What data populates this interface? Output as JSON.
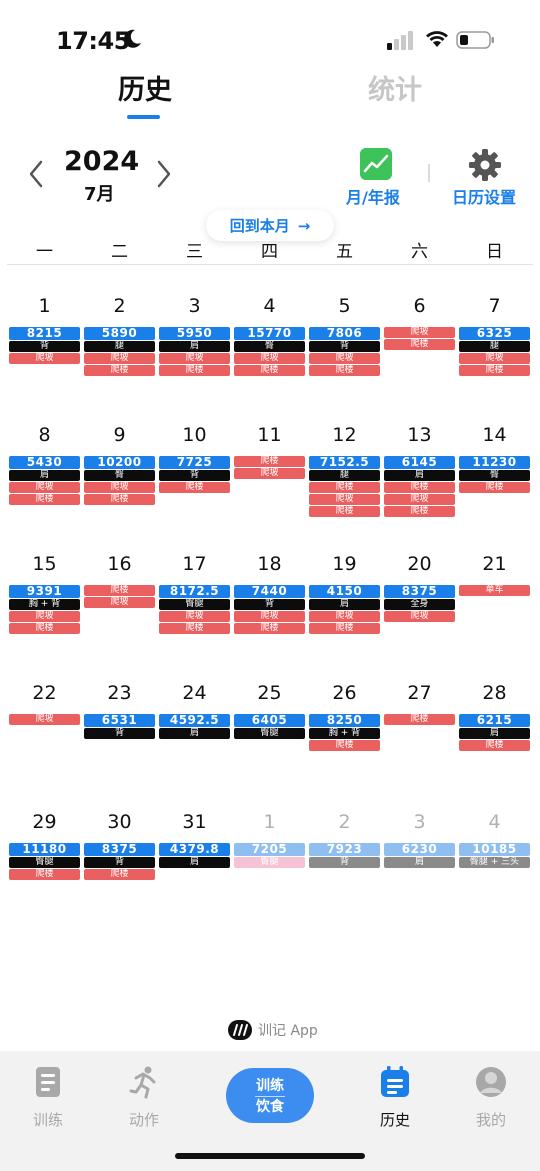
{
  "status_bar": {
    "time": "17:45"
  },
  "tabs": {
    "history": "历史",
    "stats": "统计"
  },
  "header": {
    "year": "2024",
    "month": "7月",
    "report_label": "月/年报",
    "settings_label": "日历设置",
    "back_to_month": "回到本月"
  },
  "weekdays": [
    "一",
    "二",
    "三",
    "四",
    "五",
    "六",
    "日"
  ],
  "calendar": [
    {
      "d": "1",
      "col": 0,
      "row": 0,
      "tags": [
        {
          "t": "8215",
          "c": "blue"
        },
        {
          "t": "背",
          "c": "black"
        },
        {
          "t": "爬坡",
          "c": "red"
        }
      ]
    },
    {
      "d": "2",
      "col": 1,
      "row": 0,
      "tags": [
        {
          "t": "5890",
          "c": "blue"
        },
        {
          "t": "腿",
          "c": "black"
        },
        {
          "t": "爬坡",
          "c": "red"
        },
        {
          "t": "爬楼",
          "c": "red"
        }
      ]
    },
    {
      "d": "3",
      "col": 2,
      "row": 0,
      "tags": [
        {
          "t": "5950",
          "c": "blue"
        },
        {
          "t": "肩",
          "c": "black"
        },
        {
          "t": "爬坡",
          "c": "red"
        },
        {
          "t": "爬楼",
          "c": "red"
        }
      ]
    },
    {
      "d": "4",
      "col": 3,
      "row": 0,
      "tags": [
        {
          "t": "15770",
          "c": "blue"
        },
        {
          "t": "臀",
          "c": "black"
        },
        {
          "t": "爬坡",
          "c": "red"
        },
        {
          "t": "爬楼",
          "c": "red"
        }
      ]
    },
    {
      "d": "5",
      "col": 4,
      "row": 0,
      "tags": [
        {
          "t": "7806",
          "c": "blue"
        },
        {
          "t": "背",
          "c": "black"
        },
        {
          "t": "爬坡",
          "c": "red"
        },
        {
          "t": "爬楼",
          "c": "red"
        }
      ]
    },
    {
      "d": "6",
      "col": 5,
      "row": 0,
      "tags": [
        {
          "t": "爬坡",
          "c": "red"
        },
        {
          "t": "爬楼",
          "c": "red"
        }
      ]
    },
    {
      "d": "7",
      "col": 6,
      "row": 0,
      "tags": [
        {
          "t": "6325",
          "c": "blue"
        },
        {
          "t": "腿",
          "c": "black"
        },
        {
          "t": "爬坡",
          "c": "red"
        },
        {
          "t": "爬楼",
          "c": "red"
        }
      ]
    },
    {
      "d": "8",
      "col": 0,
      "row": 1,
      "tags": [
        {
          "t": "5430",
          "c": "blue"
        },
        {
          "t": "肩",
          "c": "black"
        },
        {
          "t": "爬坡",
          "c": "red"
        },
        {
          "t": "爬楼",
          "c": "red"
        }
      ]
    },
    {
      "d": "9",
      "col": 1,
      "row": 1,
      "tags": [
        {
          "t": "10200",
          "c": "blue"
        },
        {
          "t": "臀",
          "c": "black"
        },
        {
          "t": "爬坡",
          "c": "red"
        },
        {
          "t": "爬楼",
          "c": "red"
        }
      ]
    },
    {
      "d": "10",
      "col": 2,
      "row": 1,
      "tags": [
        {
          "t": "7725",
          "c": "blue"
        },
        {
          "t": "背",
          "c": "black"
        },
        {
          "t": "爬楼",
          "c": "red"
        }
      ]
    },
    {
      "d": "11",
      "col": 3,
      "row": 1,
      "tags": [
        {
          "t": "爬楼",
          "c": "red"
        },
        {
          "t": "爬坡",
          "c": "red"
        }
      ]
    },
    {
      "d": "12",
      "col": 4,
      "row": 1,
      "tags": [
        {
          "t": "7152.5",
          "c": "blue"
        },
        {
          "t": "腿",
          "c": "black"
        },
        {
          "t": "爬楼",
          "c": "red"
        },
        {
          "t": "爬坡",
          "c": "red"
        },
        {
          "t": "爬楼",
          "c": "red"
        }
      ]
    },
    {
      "d": "13",
      "col": 5,
      "row": 1,
      "tags": [
        {
          "t": "6145",
          "c": "blue"
        },
        {
          "t": "肩",
          "c": "black"
        },
        {
          "t": "爬楼",
          "c": "red"
        },
        {
          "t": "爬坡",
          "c": "red"
        },
        {
          "t": "爬楼",
          "c": "red"
        }
      ]
    },
    {
      "d": "14",
      "col": 6,
      "row": 1,
      "tags": [
        {
          "t": "11230",
          "c": "blue"
        },
        {
          "t": "臀",
          "c": "black"
        },
        {
          "t": "爬楼",
          "c": "red"
        }
      ]
    },
    {
      "d": "15",
      "col": 0,
      "row": 2,
      "tags": [
        {
          "t": "9391",
          "c": "blue"
        },
        {
          "t": "胸 + 背",
          "c": "black"
        },
        {
          "t": "爬坡",
          "c": "red"
        },
        {
          "t": "爬楼",
          "c": "red"
        }
      ]
    },
    {
      "d": "16",
      "col": 1,
      "row": 2,
      "tags": [
        {
          "t": "爬楼",
          "c": "red"
        },
        {
          "t": "爬坡",
          "c": "red"
        }
      ]
    },
    {
      "d": "17",
      "col": 2,
      "row": 2,
      "tags": [
        {
          "t": "8172.5",
          "c": "blue"
        },
        {
          "t": "臀腿",
          "c": "black"
        },
        {
          "t": "爬坡",
          "c": "red"
        },
        {
          "t": "爬楼",
          "c": "red"
        }
      ]
    },
    {
      "d": "18",
      "col": 3,
      "row": 2,
      "tags": [
        {
          "t": "7440",
          "c": "blue"
        },
        {
          "t": "背",
          "c": "black"
        },
        {
          "t": "爬坡",
          "c": "red"
        },
        {
          "t": "爬楼",
          "c": "red"
        }
      ]
    },
    {
      "d": "19",
      "col": 4,
      "row": 2,
      "tags": [
        {
          "t": "4150",
          "c": "blue"
        },
        {
          "t": "肩",
          "c": "black"
        },
        {
          "t": "爬坡",
          "c": "red"
        },
        {
          "t": "爬楼",
          "c": "red"
        }
      ]
    },
    {
      "d": "20",
      "col": 5,
      "row": 2,
      "tags": [
        {
          "t": "8375",
          "c": "blue"
        },
        {
          "t": "全身",
          "c": "black"
        },
        {
          "t": "爬坡",
          "c": "red"
        }
      ]
    },
    {
      "d": "21",
      "col": 6,
      "row": 2,
      "tags": [
        {
          "t": "单车",
          "c": "red"
        }
      ]
    },
    {
      "d": "22",
      "col": 0,
      "row": 3,
      "tags": [
        {
          "t": "爬坡",
          "c": "red"
        }
      ]
    },
    {
      "d": "23",
      "col": 1,
      "row": 3,
      "tags": [
        {
          "t": "6531",
          "c": "blue"
        },
        {
          "t": "背",
          "c": "black"
        }
      ]
    },
    {
      "d": "24",
      "col": 2,
      "row": 3,
      "tags": [
        {
          "t": "4592.5",
          "c": "blue"
        },
        {
          "t": "肩",
          "c": "black"
        }
      ]
    },
    {
      "d": "25",
      "col": 3,
      "row": 3,
      "tags": [
        {
          "t": "6405",
          "c": "blue"
        },
        {
          "t": "臀腿",
          "c": "black"
        }
      ]
    },
    {
      "d": "26",
      "col": 4,
      "row": 3,
      "tags": [
        {
          "t": "8250",
          "c": "blue"
        },
        {
          "t": "胸 + 背",
          "c": "black"
        },
        {
          "t": "爬楼",
          "c": "red"
        }
      ]
    },
    {
      "d": "27",
      "col": 5,
      "row": 3,
      "tags": [
        {
          "t": "爬楼",
          "c": "red"
        }
      ]
    },
    {
      "d": "28",
      "col": 6,
      "row": 3,
      "tags": [
        {
          "t": "6215",
          "c": "blue"
        },
        {
          "t": "肩",
          "c": "black"
        },
        {
          "t": "爬楼",
          "c": "red"
        }
      ]
    },
    {
      "d": "29",
      "col": 0,
      "row": 4,
      "tags": [
        {
          "t": "11180",
          "c": "blue"
        },
        {
          "t": "臀腿",
          "c": "black"
        },
        {
          "t": "爬楼",
          "c": "red"
        }
      ]
    },
    {
      "d": "30",
      "col": 1,
      "row": 4,
      "tags": [
        {
          "t": "8375",
          "c": "blue"
        },
        {
          "t": "背",
          "c": "black"
        },
        {
          "t": "爬楼",
          "c": "red"
        }
      ]
    },
    {
      "d": "31",
      "col": 2,
      "row": 4,
      "tags": [
        {
          "t": "4379.8",
          "c": "blue"
        },
        {
          "t": "肩",
          "c": "black"
        }
      ]
    },
    {
      "d": "1",
      "col": 3,
      "row": 4,
      "future": true,
      "tags": [
        {
          "t": "7205",
          "c": "lightblue"
        },
        {
          "t": "臀腿",
          "c": "pink"
        }
      ]
    },
    {
      "d": "2",
      "col": 4,
      "row": 4,
      "future": true,
      "tags": [
        {
          "t": "7923",
          "c": "lightblue"
        },
        {
          "t": "背",
          "c": "gray"
        }
      ]
    },
    {
      "d": "3",
      "col": 5,
      "row": 4,
      "future": true,
      "tags": [
        {
          "t": "6230",
          "c": "lightblue"
        },
        {
          "t": "肩",
          "c": "gray"
        }
      ]
    },
    {
      "d": "4",
      "col": 6,
      "row": 4,
      "future": true,
      "tags": [
        {
          "t": "10185",
          "c": "lightblue"
        },
        {
          "t": "臀腿 + 三头",
          "c": "gray"
        }
      ]
    }
  ],
  "brand": "训记 App",
  "bottom_nav": {
    "train": "训练",
    "action": "动作",
    "center_top": "训练",
    "center_bottom": "饮食",
    "history": "历史",
    "me": "我的"
  },
  "colors": {
    "accent": "#1a7fe8",
    "tag_red": "#ea5f5f",
    "tag_black": "#0c0c0c"
  }
}
